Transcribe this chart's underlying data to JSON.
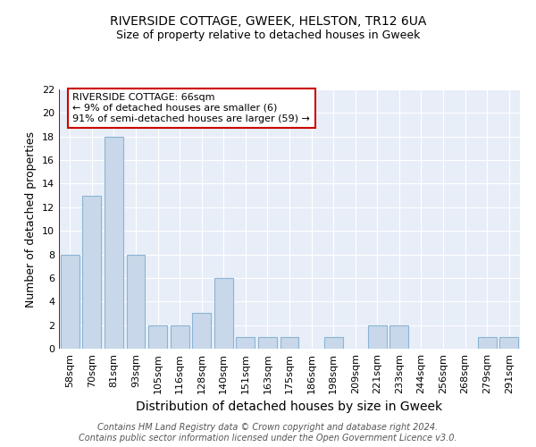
{
  "title": "RIVERSIDE COTTAGE, GWEEK, HELSTON, TR12 6UA",
  "subtitle": "Size of property relative to detached houses in Gweek",
  "xlabel": "Distribution of detached houses by size in Gweek",
  "ylabel": "Number of detached properties",
  "categories": [
    "58sqm",
    "70sqm",
    "81sqm",
    "93sqm",
    "105sqm",
    "116sqm",
    "128sqm",
    "140sqm",
    "151sqm",
    "163sqm",
    "175sqm",
    "186sqm",
    "198sqm",
    "209sqm",
    "221sqm",
    "233sqm",
    "244sqm",
    "256sqm",
    "268sqm",
    "279sqm",
    "291sqm"
  ],
  "values": [
    8,
    13,
    18,
    8,
    2,
    2,
    3,
    6,
    1,
    1,
    1,
    0,
    1,
    0,
    2,
    2,
    0,
    0,
    0,
    1,
    1
  ],
  "bar_color": "#c8d8ea",
  "bar_edge_color": "#8ab4d4",
  "vline_color": "#cc0000",
  "annotation_title": "RIVERSIDE COTTAGE: 66sqm",
  "annotation_line1": "← 9% of detached houses are smaller (6)",
  "annotation_line2": "91% of semi-detached houses are larger (59) →",
  "annotation_box_color": "#ffffff",
  "annotation_box_edge": "#cc0000",
  "ylim": [
    0,
    22
  ],
  "yticks": [
    0,
    2,
    4,
    6,
    8,
    10,
    12,
    14,
    16,
    18,
    20,
    22
  ],
  "footer_line1": "Contains HM Land Registry data © Crown copyright and database right 2024.",
  "footer_line2": "Contains public sector information licensed under the Open Government Licence v3.0.",
  "bg_color": "#e8eef8",
  "grid_color": "#ffffff",
  "title_fontsize": 10,
  "subtitle_fontsize": 9,
  "xlabel_fontsize": 10,
  "ylabel_fontsize": 9,
  "tick_fontsize": 8,
  "annotation_fontsize": 8,
  "footer_fontsize": 7
}
